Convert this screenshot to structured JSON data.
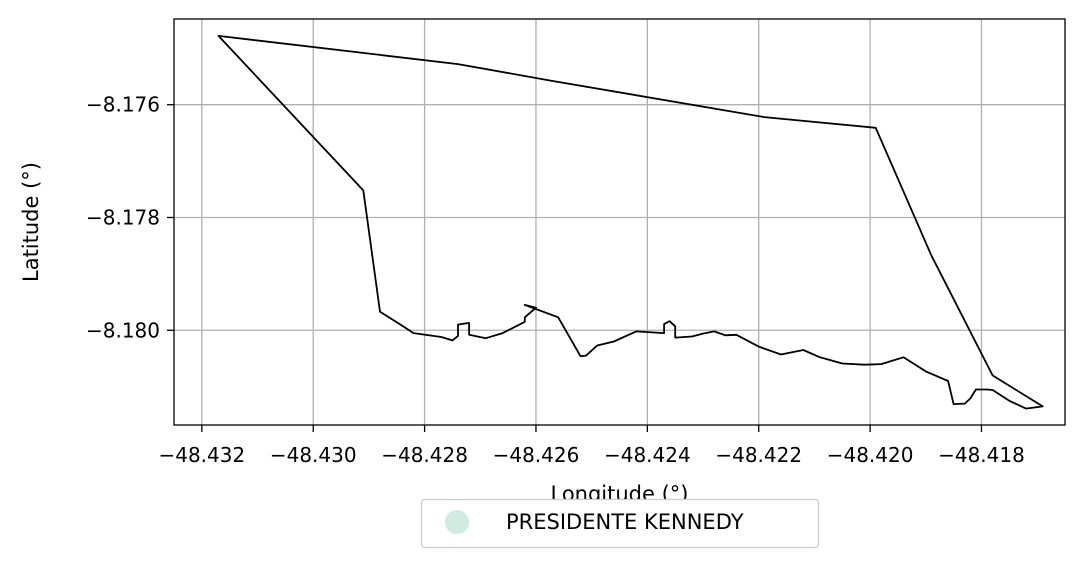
{
  "chart_data": {
    "type": "line",
    "xlabel": "Longitude (°)",
    "ylabel": "Latitude (°)",
    "xlim": [
      -48.4325,
      -48.4165
    ],
    "ylim": [
      -8.18168,
      -8.17448
    ],
    "grid": true,
    "x_ticks": [
      -48.432,
      -48.43,
      -48.428,
      -48.426,
      -48.424,
      -48.422,
      -48.42,
      -48.418
    ],
    "x_tick_labels": [
      "−48.432",
      "−48.430",
      "−48.428",
      "−48.426",
      "−48.424",
      "−48.422",
      "−48.420",
      "−48.418"
    ],
    "y_ticks": [
      -8.176,
      -8.178,
      -8.18
    ],
    "y_tick_labels": [
      "−8.176",
      "−8.178",
      "−8.180"
    ],
    "legend": {
      "placement": "bottom-center",
      "entries": [
        {
          "label": "PRESIDENTE KENNEDY",
          "color": "#d0ebdf"
        }
      ]
    },
    "series": [
      {
        "color": "#000000",
        "closed": true,
        "points": [
          [
            -48.4317,
            -8.17478
          ],
          [
            -48.4274,
            -8.17528
          ],
          [
            -48.4257,
            -8.17558
          ],
          [
            -48.4219,
            -8.17622
          ],
          [
            -48.4199,
            -8.17641
          ],
          [
            -48.4189,
            -8.17867
          ],
          [
            -48.4178,
            -8.1808
          ],
          [
            -48.4169,
            -8.18135
          ],
          [
            -48.4172,
            -8.18139
          ],
          [
            -48.4175,
            -8.18125
          ],
          [
            -48.4178,
            -8.18106
          ],
          [
            -48.4179,
            -8.18105
          ],
          [
            -48.4181,
            -8.18105
          ],
          [
            -48.4182,
            -8.18121
          ],
          [
            -48.4183,
            -8.1813
          ],
          [
            -48.4185,
            -8.18131
          ],
          [
            -48.4186,
            -8.1809
          ],
          [
            -48.419,
            -8.18073
          ],
          [
            -48.4194,
            -8.18048
          ],
          [
            -48.4198,
            -8.1806
          ],
          [
            -48.4201,
            -8.18061
          ],
          [
            -48.4205,
            -8.18059
          ],
          [
            -48.4209,
            -8.18048
          ],
          [
            -48.4212,
            -8.18035
          ],
          [
            -48.4216,
            -8.18043
          ],
          [
            -48.422,
            -8.18029
          ],
          [
            -48.4224,
            -8.18008
          ],
          [
            -48.4226,
            -8.18009
          ],
          [
            -48.4228,
            -8.18002
          ],
          [
            -48.423,
            -8.18006
          ],
          [
            -48.4232,
            -8.18011
          ],
          [
            -48.4235,
            -8.18013
          ],
          [
            -48.4235,
            -8.17993
          ],
          [
            -48.4236,
            -8.17984
          ],
          [
            -48.4237,
            -8.17989
          ],
          [
            -48.4237,
            -8.18005
          ],
          [
            -48.4242,
            -8.18002
          ],
          [
            -48.4246,
            -8.1802
          ],
          [
            -48.4249,
            -8.18027
          ],
          [
            -48.4251,
            -8.18045
          ],
          [
            -48.4252,
            -8.18046
          ],
          [
            -48.4256,
            -8.17977
          ],
          [
            -48.4262,
            -8.17955
          ],
          [
            -48.426,
            -8.1796
          ],
          [
            -48.4262,
            -8.17977
          ],
          [
            -48.4262,
            -8.17985
          ],
          [
            -48.4266,
            -8.18005
          ],
          [
            -48.4269,
            -8.18014
          ],
          [
            -48.4272,
            -8.18008
          ],
          [
            -48.4272,
            -8.17987
          ],
          [
            -48.4274,
            -8.1799
          ],
          [
            -48.4274,
            -8.1801
          ],
          [
            -48.4275,
            -8.18018
          ],
          [
            -48.4277,
            -8.18012
          ],
          [
            -48.4282,
            -8.18005
          ],
          [
            -48.4284,
            -8.17992
          ],
          [
            -48.4288,
            -8.17967
          ],
          [
            -48.4291,
            -8.17752
          ],
          [
            -48.4317,
            -8.17478
          ]
        ]
      }
    ]
  }
}
